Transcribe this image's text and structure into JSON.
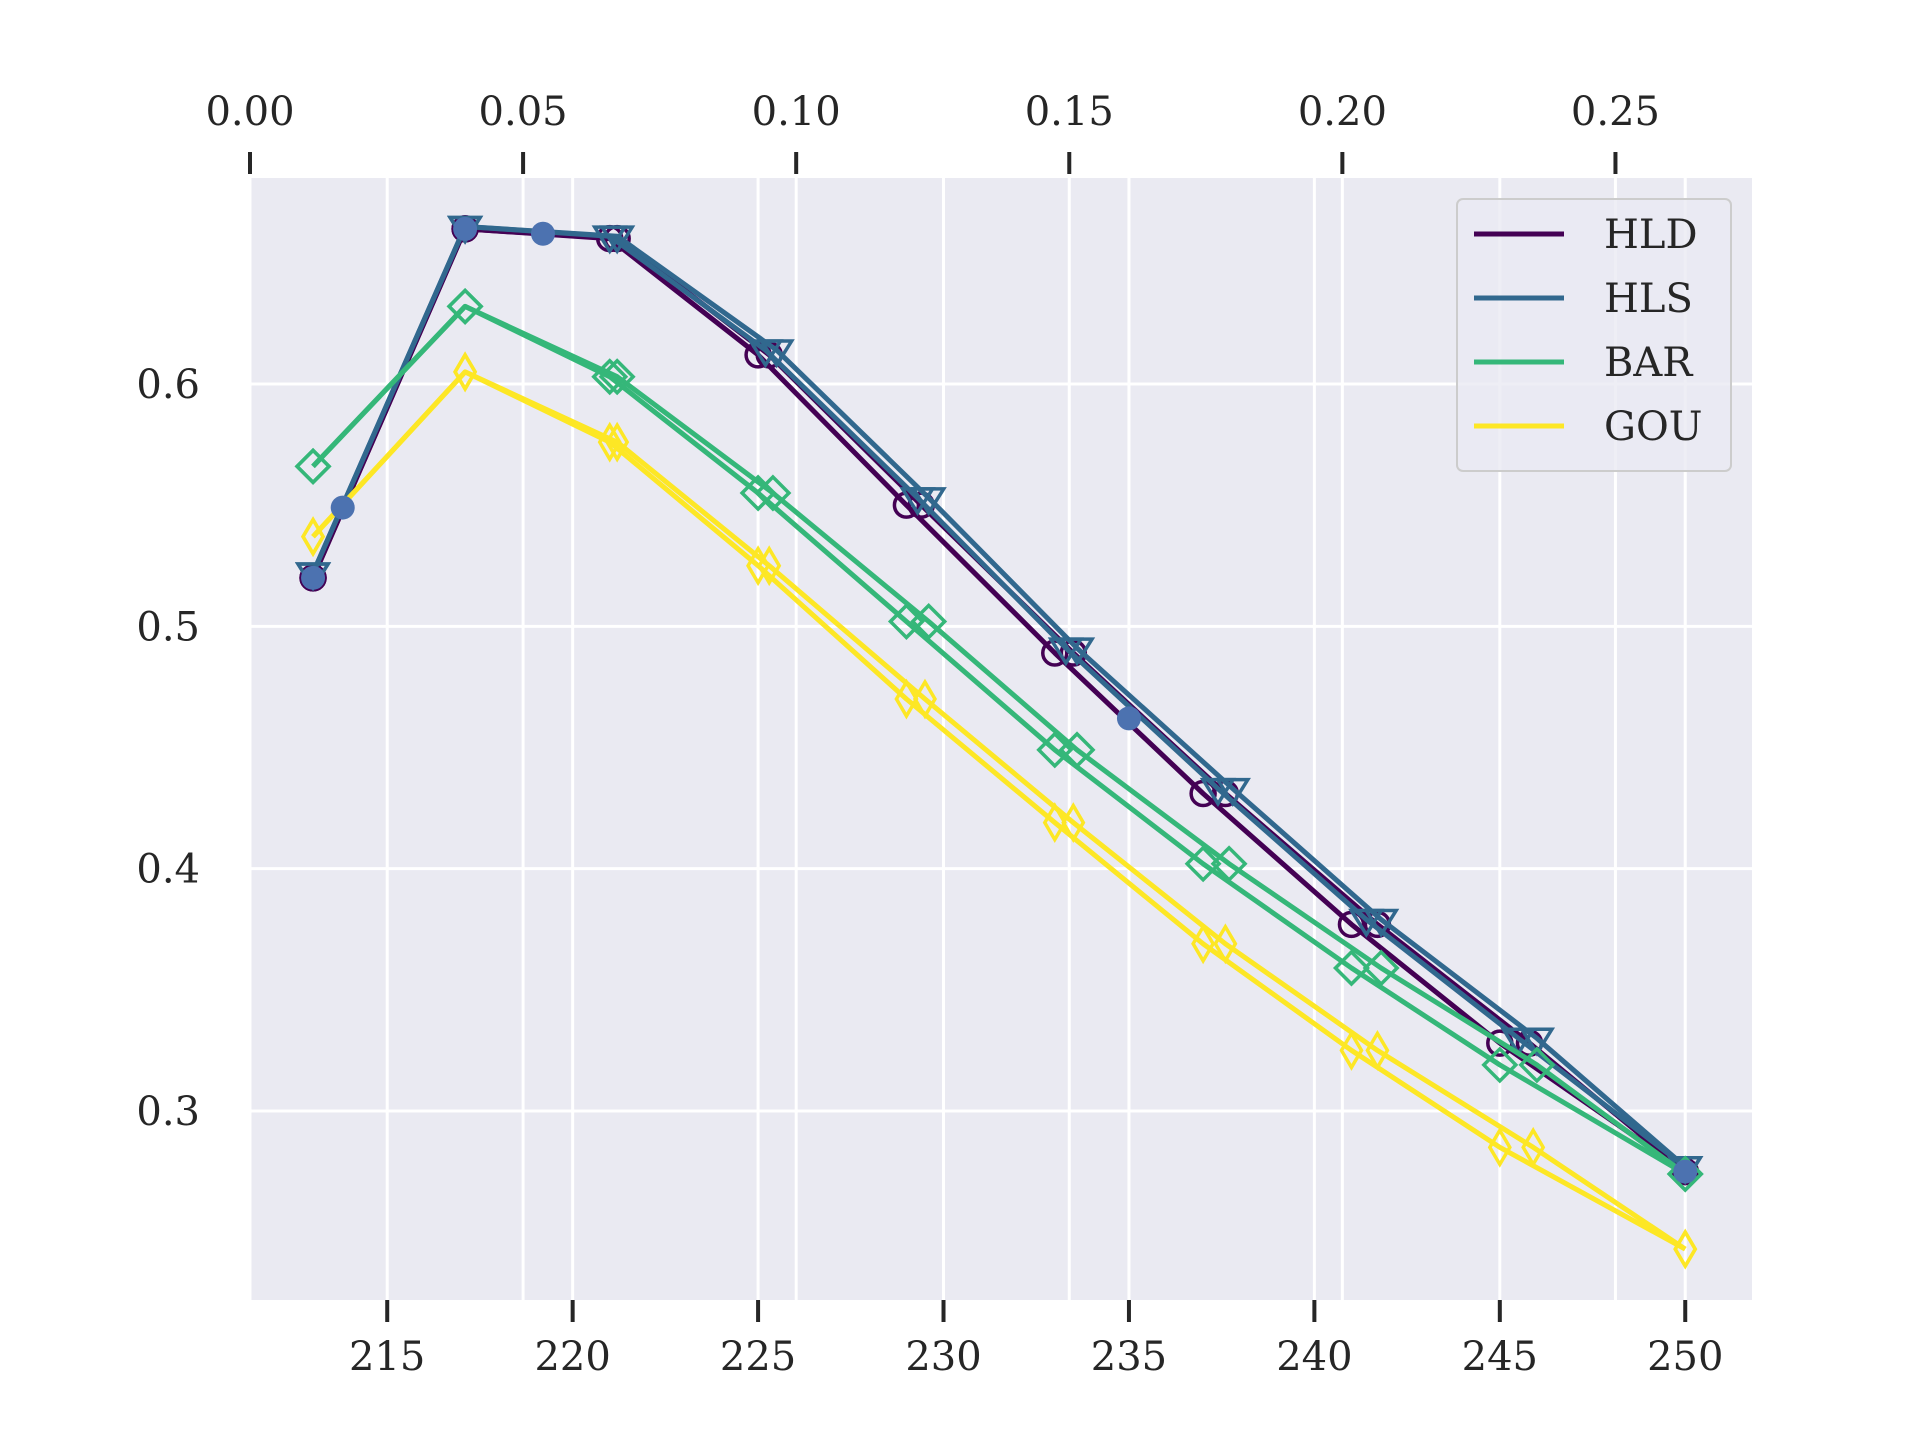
{
  "chart_data": {
    "type": "line",
    "title": "",
    "xlabel": "",
    "ylabel": "",
    "bottom_axis": {
      "range": [
        211.3,
        251.8
      ],
      "ticks": [
        215,
        220,
        225,
        230,
        235,
        240,
        245,
        250
      ],
      "tick_labels": [
        "215",
        "220",
        "225",
        "230",
        "235",
        "240",
        "245",
        "250"
      ]
    },
    "top_axis": {
      "range": [
        0.0,
        0.275
      ],
      "ticks": [
        0.0,
        0.05,
        0.1,
        0.15,
        0.2,
        0.25
      ],
      "tick_labels": [
        "0.00",
        "0.05",
        "0.10",
        "0.15",
        "0.20",
        "0.25"
      ]
    },
    "y_axis": {
      "range": [
        0.222,
        0.685
      ],
      "ticks": [
        0.3,
        0.4,
        0.5,
        0.6
      ],
      "tick_labels": [
        "0.3",
        "0.4",
        "0.5",
        "0.6"
      ]
    },
    "grid": true,
    "legend_position": "top-right",
    "extra_points": {
      "name": "points",
      "color": "#4c72b0",
      "x": [
        213,
        213.8,
        217.1,
        219.2,
        235.0,
        250.0
      ],
      "y": [
        0.52,
        0.549,
        0.664,
        0.662,
        0.462,
        0.275
      ]
    },
    "series": [
      {
        "name": "HLD",
        "color": "#440154",
        "marker": "circle",
        "lines": [
          {
            "x": [
              213,
              217.1,
              221.0,
              225.0,
              229.0,
              233.0,
              237.0,
              241.0,
              245.0,
              250.0
            ],
            "y": [
              0.52,
              0.664,
              0.66,
              0.612,
              0.55,
              0.489,
              0.431,
              0.377,
              0.328,
              0.275
            ]
          },
          {
            "x": [
              213,
              217.1,
              221.2,
              225.3,
              229.4,
              233.5,
              237.6,
              241.7,
              245.8,
              250.0
            ],
            "y": [
              0.52,
              0.664,
              0.66,
              0.612,
              0.55,
              0.489,
              0.431,
              0.377,
              0.328,
              0.275
            ]
          }
        ]
      },
      {
        "name": "HLS",
        "color": "#31688e",
        "marker": "triangle-down",
        "lines": [
          {
            "x": [
              213,
              217.1,
              221.0,
              225.2,
              229.3,
              233.3,
              237.4,
              241.4,
              245.5,
              250.0
            ],
            "y": [
              0.522,
              0.665,
              0.661,
              0.614,
              0.553,
              0.491,
              0.433,
              0.379,
              0.33,
              0.277
            ]
          },
          {
            "x": [
              213,
              217.1,
              221.2,
              225.5,
              229.6,
              233.6,
              237.8,
              241.8,
              246.0,
              250.0
            ],
            "y": [
              0.522,
              0.665,
              0.661,
              0.614,
              0.553,
              0.491,
              0.433,
              0.379,
              0.33,
              0.277
            ]
          }
        ]
      },
      {
        "name": "BAR",
        "color": "#35b779",
        "marker": "diamond",
        "lines": [
          {
            "x": [
              213,
              217.1,
              221.0,
              225.0,
              229.0,
              233.0,
              237.0,
              241.0,
              245.0,
              250.0
            ],
            "y": [
              0.566,
              0.632,
              0.603,
              0.555,
              0.502,
              0.449,
              0.402,
              0.359,
              0.319,
              0.274
            ]
          },
          {
            "x": [
              213,
              217.1,
              221.2,
              225.4,
              229.6,
              233.6,
              237.7,
              241.8,
              246.0,
              250.0
            ],
            "y": [
              0.566,
              0.632,
              0.603,
              0.555,
              0.502,
              0.449,
              0.402,
              0.359,
              0.319,
              0.274
            ]
          }
        ]
      },
      {
        "name": "GOU",
        "color": "#fde725",
        "marker": "thin-diamond",
        "lines": [
          {
            "x": [
              213,
              217.1,
              221.0,
              225.0,
              229.0,
              233.0,
              237.0,
              241.0,
              245.0,
              250.0
            ],
            "y": [
              0.537,
              0.605,
              0.576,
              0.525,
              0.47,
              0.419,
              0.369,
              0.325,
              0.285,
              0.243
            ]
          },
          {
            "x": [
              213,
              217.1,
              221.2,
              225.3,
              229.5,
              233.5,
              237.6,
              241.7,
              245.9,
              250.0
            ],
            "y": [
              0.537,
              0.605,
              0.576,
              0.525,
              0.47,
              0.419,
              0.369,
              0.325,
              0.285,
              0.243
            ]
          }
        ]
      }
    ]
  }
}
